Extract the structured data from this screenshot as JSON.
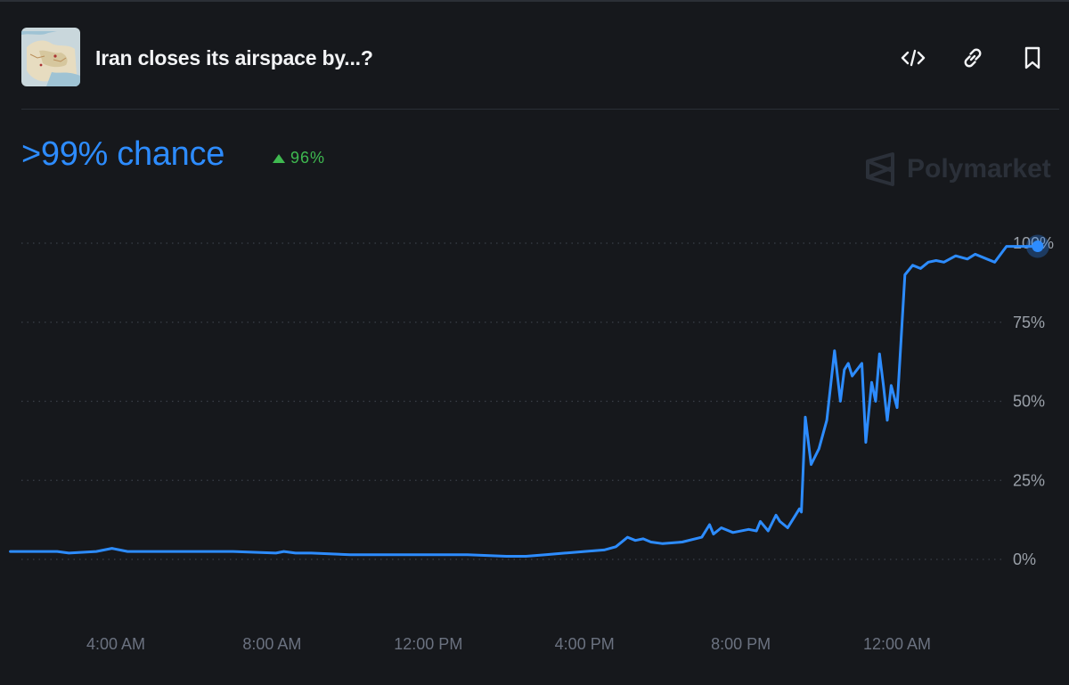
{
  "header": {
    "title": "Iran closes its airspace by...?",
    "thumbnail_icon": "iran-map-thumbnail",
    "embed_icon": "code-icon",
    "link_icon": "link-icon",
    "bookmark_icon": "bookmark-icon"
  },
  "summary": {
    "chance_label": ">99% chance",
    "change_label": "96%",
    "change_direction": "up",
    "brand": "Polymarket"
  },
  "colors": {
    "background": "#16181c",
    "line": "#2d8cff",
    "positive": "#3fb950",
    "axis_text": "#9aa0a8",
    "grid": "#3a3f47"
  },
  "chart_data": {
    "type": "line",
    "title": "",
    "xlabel": "",
    "ylabel": "",
    "ylim": [
      0,
      100
    ],
    "y_ticks": [
      0,
      25,
      50,
      75,
      100
    ],
    "y_tick_labels": [
      "0%",
      "25%",
      "50%",
      "75%",
      "100%"
    ],
    "x_ticks": [
      4,
      8,
      12,
      16,
      20,
      24
    ],
    "x_tick_labels": [
      "4:00 AM",
      "8:00 AM",
      "12:00 PM",
      "4:00 PM",
      "8:00 PM",
      "12:00 AM"
    ],
    "xlim": [
      1.3,
      27.6
    ],
    "grid": true,
    "series": [
      {
        "name": "",
        "x": [
          1.3,
          2.5,
          2.8,
          3.5,
          3.9,
          4.1,
          4.3,
          5.0,
          7.0,
          8.1,
          8.3,
          8.6,
          9.0,
          10.0,
          11.0,
          12.0,
          13.0,
          14.0,
          14.5,
          15.0,
          15.5,
          16.0,
          16.5,
          16.8,
          17.0,
          17.1,
          17.3,
          17.5,
          17.7,
          18.0,
          18.5,
          19.0,
          19.2,
          19.3,
          19.5,
          19.8,
          20.2,
          20.4,
          20.5,
          20.7,
          20.9,
          21.0,
          21.2,
          21.4,
          21.5,
          21.55,
          21.65,
          21.8,
          22.0,
          22.2,
          22.4,
          22.55,
          22.65,
          22.75,
          22.85,
          23.1,
          23.2,
          23.35,
          23.45,
          23.55,
          23.65,
          23.75,
          23.85,
          24.0,
          24.2,
          24.4,
          24.6,
          24.8,
          25.0,
          25.2,
          25.5,
          25.8,
          26.0,
          26.3,
          26.5,
          26.8,
          27.0,
          27.3,
          27.6
        ],
        "values": [
          2.5,
          2.5,
          2.0,
          2.5,
          3.5,
          3.0,
          2.5,
          2.5,
          2.5,
          2.0,
          2.5,
          2.0,
          2.0,
          1.5,
          1.5,
          1.5,
          1.5,
          1.0,
          1.0,
          1.5,
          2.0,
          2.5,
          3.0,
          4.0,
          6.0,
          7.0,
          6.0,
          6.5,
          5.5,
          5.0,
          5.5,
          7.0,
          11.0,
          8.0,
          10.0,
          8.5,
          9.5,
          9.0,
          12.0,
          9.0,
          14.0,
          12.0,
          10.0,
          14.0,
          16.0,
          15.0,
          45.0,
          30.0,
          35.0,
          44.0,
          66.0,
          50.0,
          60.0,
          62.0,
          58.0,
          62.0,
          37.0,
          56.0,
          50.0,
          65.0,
          55.0,
          44.0,
          55.0,
          48.0,
          90.0,
          93.0,
          92.0,
          94.0,
          94.5,
          94.0,
          96.0,
          95.0,
          96.5,
          95.0,
          94.0,
          99.0,
          99.0,
          99.0,
          99.0
        ]
      }
    ]
  }
}
